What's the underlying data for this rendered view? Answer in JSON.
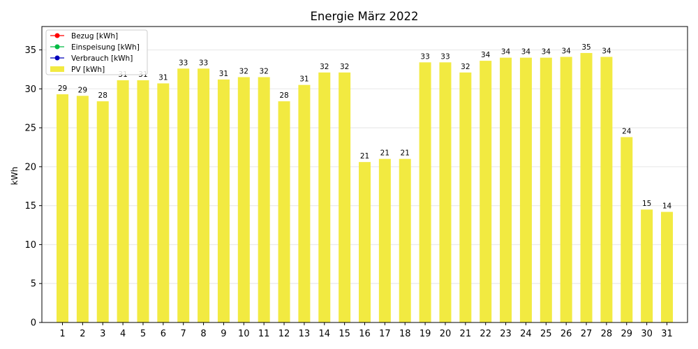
{
  "chart_data": {
    "type": "bar",
    "title": "Energie März 2022",
    "xlabel": "",
    "ylabel": "kWh",
    "ylim": [
      0,
      38
    ],
    "yticks": [
      0,
      5,
      10,
      15,
      20,
      25,
      30,
      35
    ],
    "grid": "horizontal",
    "legend_placement": "top-left",
    "legend": [
      {
        "name": "Bezug [kWh]",
        "kind": "line-marker",
        "color": "#ff0000"
      },
      {
        "name": "Einspeisung [kWh]",
        "kind": "line-marker",
        "color": "#00bb44"
      },
      {
        "name": "Verbrauch [kWh]",
        "kind": "line-marker",
        "color": "#0000bb"
      },
      {
        "name": "PV [kWh]",
        "kind": "bar",
        "color": "#f2ea41"
      }
    ],
    "categories": [
      "1",
      "2",
      "3",
      "4",
      "5",
      "6",
      "7",
      "8",
      "9",
      "10",
      "11",
      "12",
      "13",
      "14",
      "15",
      "16",
      "17",
      "18",
      "19",
      "20",
      "21",
      "22",
      "23",
      "24",
      "25",
      "26",
      "27",
      "28",
      "29",
      "30",
      "31"
    ],
    "series": [
      {
        "name": "PV [kWh]",
        "color": "#f2ea41",
        "values": [
          29.3,
          29.1,
          28.4,
          31.1,
          31.1,
          30.7,
          32.6,
          32.6,
          31.2,
          31.5,
          31.5,
          28.4,
          30.5,
          32.1,
          32.1,
          20.6,
          21.0,
          21.0,
          33.4,
          33.4,
          32.1,
          33.6,
          34.0,
          34.0,
          34.0,
          34.1,
          34.6,
          34.1,
          23.8,
          14.5,
          14.2
        ],
        "labels": [
          "29",
          "29",
          "28",
          "31",
          "31",
          "31",
          "33",
          "33",
          "31",
          "32",
          "32",
          "28",
          "31",
          "32",
          "32",
          "21",
          "21",
          "21",
          "33",
          "33",
          "32",
          "34",
          "34",
          "34",
          "34",
          "34",
          "35",
          "34",
          "24",
          "15",
          "14"
        ]
      }
    ]
  }
}
